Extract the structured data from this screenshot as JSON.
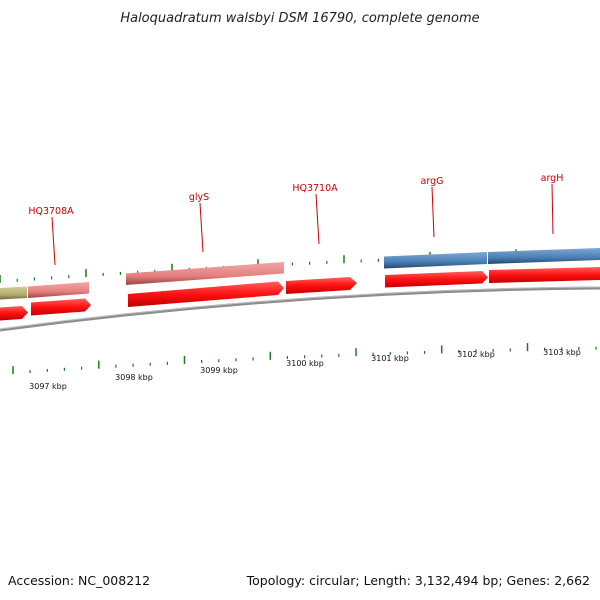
{
  "title": "Haloquadratum walsbyi DSM 16790, complete genome",
  "accession": "Accession: NC_008212",
  "topology": "Topology: circular; Length: 3,132,494 bp; Genes: 2,662",
  "scale_labels": [
    "3097 kbp",
    "3098 kbp",
    "3099 kbp",
    "3100 kbp",
    "3101 kbp",
    "3102 kbp",
    "3103 kbp"
  ],
  "gene_labels": [
    "HQ3708A",
    "glyS",
    "HQ3710A",
    "argG",
    "argH"
  ],
  "colors": {
    "backbone": "#8c8c8c",
    "cds_forward": "#ff1a1a",
    "gene_pink": "#e58080",
    "gene_blue": "#4a7fb5",
    "gene_olive": "#b5b070",
    "tick_green": "#1a7a1a",
    "label_red": "#cc0000"
  }
}
